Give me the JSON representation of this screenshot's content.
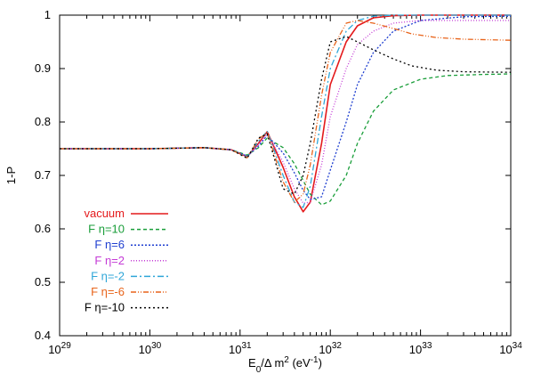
{
  "chart_data": {
    "type": "line",
    "xscale": "log",
    "xlim": [
      1e+29,
      1e+34
    ],
    "ylim": [
      0.4,
      1.0
    ],
    "xlabel": "E0/Δ m2 (eV-1)",
    "ylabel": "1-P",
    "xticks": [
      {
        "value": 1e+29,
        "base": "10",
        "exp": "29"
      },
      {
        "value": 1e+30,
        "base": "10",
        "exp": "30"
      },
      {
        "value": 1e+31,
        "base": "10",
        "exp": "31"
      },
      {
        "value": 1e+32,
        "base": "10",
        "exp": "32"
      },
      {
        "value": 1e+33,
        "base": "10",
        "exp": "33"
      },
      {
        "value": 1e+34,
        "base": "10",
        "exp": "34"
      }
    ],
    "yticks": [
      "0.4",
      "0.5",
      "0.6",
      "0.7",
      "0.8",
      "0.9",
      "1"
    ],
    "legend_position": "bottom-left",
    "series": [
      {
        "name": "vacuum",
        "color": "#e41a1c",
        "dash": "none",
        "x": [
          1e+29,
          1e+30,
          4e+30,
          8e+30,
          1.2e+31,
          1.6e+31,
          2e+31,
          3e+31,
          4e+31,
          5e+31,
          6e+31,
          8e+31,
          1e+32,
          1.5e+32,
          2e+32,
          3e+32,
          5e+32,
          1e+33,
          3e+33,
          1e+34
        ],
        "y": [
          0.75,
          0.75,
          0.752,
          0.748,
          0.735,
          0.76,
          0.782,
          0.715,
          0.66,
          0.632,
          0.65,
          0.76,
          0.87,
          0.95,
          0.98,
          0.995,
          0.999,
          1.0,
          1.0,
          1.0
        ]
      },
      {
        "name": "F η=10",
        "color": "#1a9e3a",
        "dash": "4,3",
        "x": [
          1e+29,
          1e+30,
          4e+30,
          8e+30,
          1.2e+31,
          1.6e+31,
          2e+31,
          3e+31,
          4e+31,
          6e+31,
          8e+31,
          1e+32,
          1.5e+32,
          2e+32,
          3e+32,
          5e+32,
          1e+33,
          2e+33,
          5e+33,
          1e+34
        ],
        "y": [
          0.75,
          0.75,
          0.752,
          0.748,
          0.738,
          0.752,
          0.77,
          0.752,
          0.722,
          0.665,
          0.645,
          0.652,
          0.7,
          0.76,
          0.82,
          0.86,
          0.88,
          0.887,
          0.889,
          0.89
        ]
      },
      {
        "name": "F η=6",
        "color": "#1f3fd0",
        "dash": "2,2",
        "x": [
          1e+29,
          1e+30,
          4e+30,
          8e+30,
          1.2e+31,
          1.6e+31,
          2e+31,
          3e+31,
          4e+31,
          5e+31,
          6e+31,
          8e+31,
          1e+32,
          1.5e+32,
          2e+32,
          3e+32,
          5e+32,
          1e+33,
          3e+33,
          1e+34
        ],
        "y": [
          0.75,
          0.75,
          0.752,
          0.748,
          0.736,
          0.755,
          0.775,
          0.742,
          0.705,
          0.672,
          0.655,
          0.66,
          0.71,
          0.8,
          0.87,
          0.93,
          0.97,
          0.99,
          0.997,
          0.998
        ]
      },
      {
        "name": "F η=2",
        "color": "#c43bd6",
        "dash": "1,2",
        "x": [
          1e+29,
          1e+30,
          4e+30,
          8e+30,
          1.2e+31,
          1.6e+31,
          2e+31,
          3e+31,
          4e+31,
          5e+31,
          6e+31,
          8e+31,
          1e+32,
          1.5e+32,
          2e+32,
          3e+32,
          5e+32,
          1e+33,
          3e+33,
          1e+34
        ],
        "y": [
          0.75,
          0.75,
          0.752,
          0.748,
          0.735,
          0.758,
          0.778,
          0.725,
          0.675,
          0.648,
          0.65,
          0.72,
          0.81,
          0.9,
          0.945,
          0.97,
          0.985,
          0.99,
          0.99,
          0.99
        ]
      },
      {
        "name": "F η=-2",
        "color": "#2fa6d8",
        "dash": "7,3,2,3",
        "x": [
          1e+29,
          1e+30,
          4e+30,
          8e+30,
          1.2e+31,
          1.6e+31,
          2e+31,
          3e+31,
          4e+31,
          5e+31,
          6e+31,
          8e+31,
          1e+32,
          1.5e+32,
          2e+32,
          3e+32,
          5e+32,
          1e+33,
          3e+33,
          1e+34
        ],
        "y": [
          0.75,
          0.75,
          0.752,
          0.748,
          0.734,
          0.764,
          0.783,
          0.7,
          0.65,
          0.64,
          0.68,
          0.81,
          0.9,
          0.97,
          0.99,
          0.998,
          1.0,
          1.0,
          1.0,
          1.0
        ]
      },
      {
        "name": "F η=-6",
        "color": "#e8641b",
        "dash": "6,2,1,2,1,2",
        "x": [
          1e+29,
          1e+30,
          4e+30,
          8e+30,
          1.2e+31,
          1.6e+31,
          2e+31,
          3e+31,
          4e+31,
          5e+31,
          6e+31,
          8e+31,
          1e+32,
          1.5e+32,
          2e+32,
          3e+32,
          5e+32,
          8e+32,
          1.5e+33,
          3e+33,
          1e+34
        ],
        "y": [
          0.75,
          0.75,
          0.752,
          0.748,
          0.733,
          0.768,
          0.78,
          0.688,
          0.65,
          0.665,
          0.72,
          0.85,
          0.93,
          0.985,
          0.99,
          0.985,
          0.975,
          0.965,
          0.958,
          0.955,
          0.953
        ]
      },
      {
        "name": "F η=-10",
        "color": "#000000",
        "dash": "2,3",
        "x": [
          1e+29,
          1e+30,
          4e+30,
          8e+30,
          1.2e+31,
          1.6e+31,
          2e+31,
          3e+31,
          4e+31,
          5e+31,
          6e+31,
          8e+31,
          1e+32,
          1.5e+32,
          2e+32,
          3e+32,
          5e+32,
          8e+32,
          1.5e+33,
          3e+33,
          1e+34
        ],
        "y": [
          0.75,
          0.75,
          0.752,
          0.748,
          0.732,
          0.77,
          0.778,
          0.675,
          0.665,
          0.7,
          0.76,
          0.88,
          0.95,
          0.96,
          0.95,
          0.935,
          0.918,
          0.905,
          0.897,
          0.894,
          0.893
        ]
      }
    ]
  }
}
